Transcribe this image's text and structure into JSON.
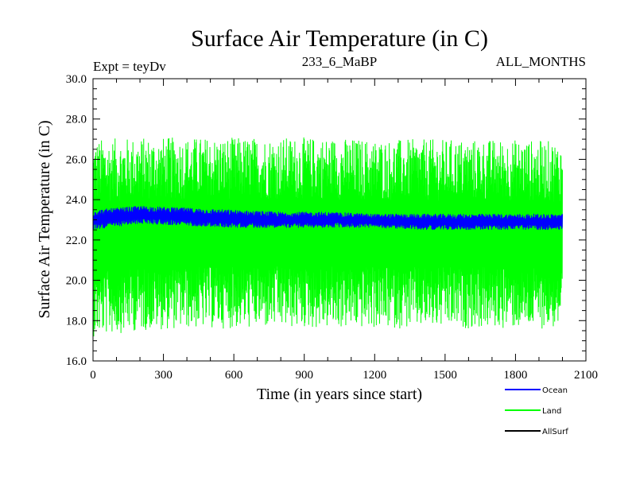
{
  "chart_data": {
    "type": "line",
    "title": "Surface Air Temperature (in C)",
    "subtitle_left": "Expt = teyDv",
    "subtitle_center": "233_6_MaBP",
    "subtitle_right": "ALL_MONTHS",
    "xlabel": "Time (in years since start)",
    "ylabel": "Surface Air Temperature (in C)",
    "xlim": [
      0,
      2100
    ],
    "ylim": [
      16.0,
      30.0
    ],
    "x_ticks": [
      "0",
      "300",
      "600",
      "900",
      "1200",
      "1500",
      "1800",
      "2100"
    ],
    "y_ticks": [
      "16.0",
      "18.0",
      "20.0",
      "22.0",
      "24.0",
      "26.0",
      "28.0",
      "30.0"
    ],
    "grid": false,
    "legend_position": "bottom-right",
    "series": [
      {
        "name": "Land",
        "color": "#00ff00",
        "x_range": [
          0,
          2000
        ],
        "mean": 22.3,
        "envelope_low": [
          17.2,
          17.5,
          17.6,
          17.6,
          17.6,
          17.6,
          17.6,
          17.6,
          17.6,
          17.6,
          17.6
        ],
        "envelope_high": [
          27.0,
          27.1,
          27.1,
          27.1,
          27.1,
          27.1,
          27.0,
          27.0,
          27.0,
          27.0,
          26.9
        ],
        "envelope_x": [
          0,
          200,
          400,
          600,
          800,
          1000,
          1200,
          1400,
          1600,
          1800,
          2000
        ]
      },
      {
        "name": "Ocean",
        "color": "#0000ff",
        "x_range": [
          0,
          2000
        ],
        "mean": 23.1,
        "envelope_low": [
          22.5,
          22.8,
          22.7,
          22.6,
          22.6,
          22.6,
          22.6,
          22.5,
          22.5,
          22.5,
          22.5
        ],
        "envelope_high": [
          23.5,
          23.7,
          23.6,
          23.5,
          23.4,
          23.4,
          23.3,
          23.3,
          23.3,
          23.3,
          23.3
        ],
        "envelope_x": [
          0,
          200,
          400,
          600,
          800,
          1000,
          1200,
          1400,
          1600,
          1800,
          2000
        ]
      },
      {
        "name": "AllSurf",
        "color": "#000000",
        "x_range": [
          0,
          2000
        ]
      }
    ],
    "legend": [
      "Ocean",
      "Land",
      "AllSurf"
    ]
  }
}
